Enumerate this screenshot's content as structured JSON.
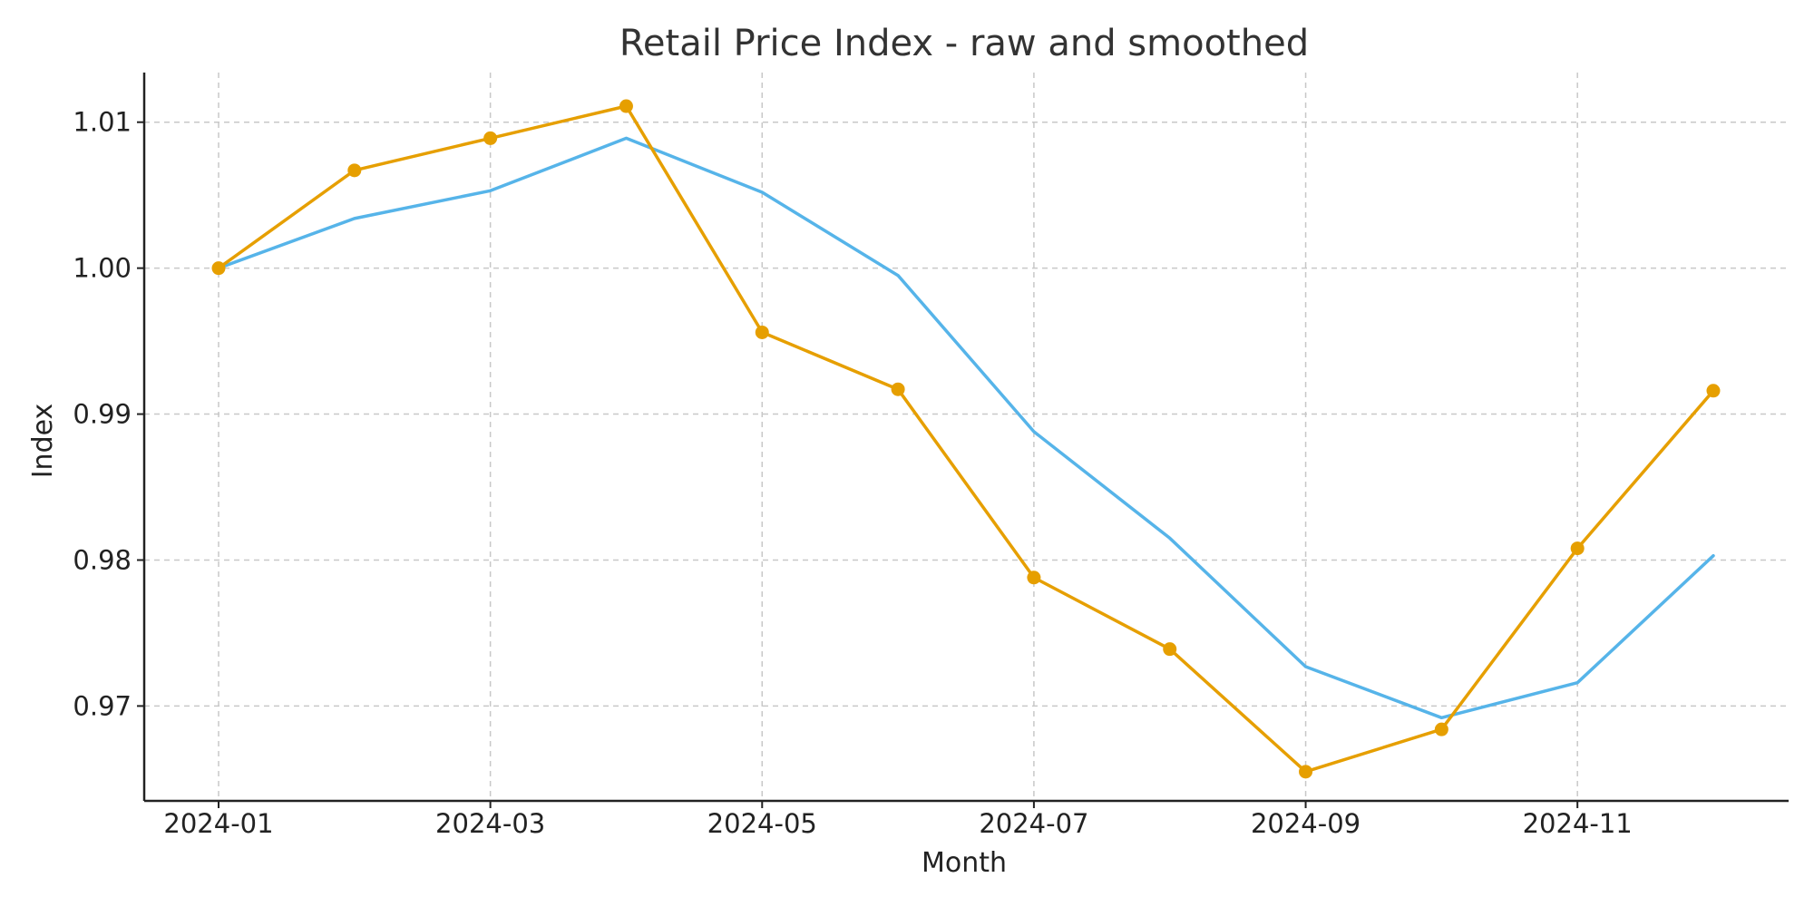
{
  "chart_data": {
    "type": "line",
    "title": "Retail Price Index - raw and smoothed",
    "xlabel": "Month",
    "ylabel": "Index",
    "x": [
      "2024-01",
      "2024-02",
      "2024-03",
      "2024-04",
      "2024-05",
      "2024-06",
      "2024-07",
      "2024-08",
      "2024-09",
      "2024-10",
      "2024-11",
      "2024-12"
    ],
    "x_ticks": [
      "2024-01",
      "2024-03",
      "2024-05",
      "2024-07",
      "2024-09",
      "2024-11"
    ],
    "y_ticks": [
      0.97,
      0.98,
      0.99,
      1.0,
      1.01
    ],
    "y_tick_labels": [
      "0.97",
      "0.98",
      "0.99",
      "1.00",
      "1.01"
    ],
    "ylim": [
      0.9635,
      1.0134
    ],
    "grid": true,
    "legend": "none",
    "series": [
      {
        "color": "#56b4e9",
        "markers": false,
        "values": [
          1.0,
          1.0034,
          1.0053,
          1.0089,
          1.0052,
          0.9995,
          0.9888,
          0.9815,
          0.9727,
          0.9692,
          0.9716,
          0.9803
        ]
      },
      {
        "color": "#e69f00",
        "markers": true,
        "values": [
          1.0,
          1.0067,
          1.0089,
          1.0111,
          0.9956,
          0.9917,
          0.9788,
          0.9739,
          0.9655,
          0.9684,
          0.9808,
          0.9916
        ]
      }
    ]
  }
}
